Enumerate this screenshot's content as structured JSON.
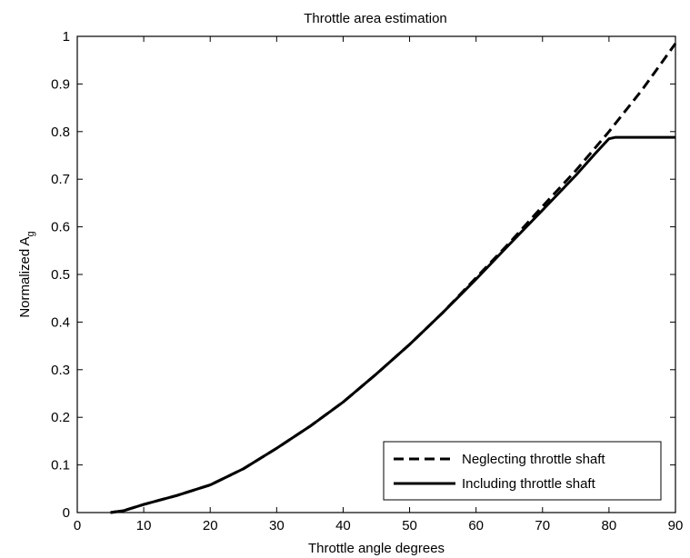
{
  "chart_data": {
    "type": "line",
    "title": "Throttle area estimation",
    "xlabel": "Throttle angle degrees",
    "ylabel": "Normalized A",
    "ylabel_subscript": "g",
    "xlim": [
      0,
      90
    ],
    "ylim": [
      0,
      1
    ],
    "xticks": [
      0,
      10,
      20,
      30,
      40,
      50,
      60,
      70,
      80,
      90
    ],
    "yticks": [
      0,
      0.1,
      0.2,
      0.3,
      0.4,
      0.5,
      0.6,
      0.7,
      0.8,
      0.9,
      1
    ],
    "xtick_labels": [
      "0",
      "10",
      "20",
      "30",
      "40",
      "50",
      "60",
      "70",
      "80",
      "90"
    ],
    "ytick_labels": [
      "0",
      "0.1",
      "0.2",
      "0.3",
      "0.4",
      "0.5",
      "0.6",
      "0.7",
      "0.8",
      "0.9",
      "1"
    ],
    "grid": false,
    "legend_position": "bottom-right",
    "series": [
      {
        "name": "Neglecting throttle shaft",
        "style": "dashed",
        "color": "#000000",
        "x": [
          5,
          7,
          10,
          15,
          20,
          25,
          30,
          35,
          40,
          45,
          50,
          55,
          60,
          65,
          70,
          75,
          80,
          85,
          90
        ],
        "y": [
          0,
          0.004,
          0.017,
          0.036,
          0.058,
          0.092,
          0.135,
          0.181,
          0.232,
          0.291,
          0.353,
          0.42,
          0.493,
          0.566,
          0.643,
          0.718,
          0.8,
          0.888,
          0.985
        ]
      },
      {
        "name": "Including throttle shaft",
        "style": "solid",
        "color": "#000000",
        "x": [
          5,
          7,
          10,
          15,
          20,
          25,
          30,
          35,
          40,
          45,
          50,
          55,
          60,
          65,
          70,
          75,
          78,
          80,
          81,
          85,
          90
        ],
        "y": [
          0,
          0.004,
          0.017,
          0.036,
          0.058,
          0.092,
          0.135,
          0.181,
          0.232,
          0.291,
          0.353,
          0.42,
          0.49,
          0.563,
          0.635,
          0.708,
          0.755,
          0.785,
          0.788,
          0.788,
          0.788
        ]
      }
    ]
  }
}
